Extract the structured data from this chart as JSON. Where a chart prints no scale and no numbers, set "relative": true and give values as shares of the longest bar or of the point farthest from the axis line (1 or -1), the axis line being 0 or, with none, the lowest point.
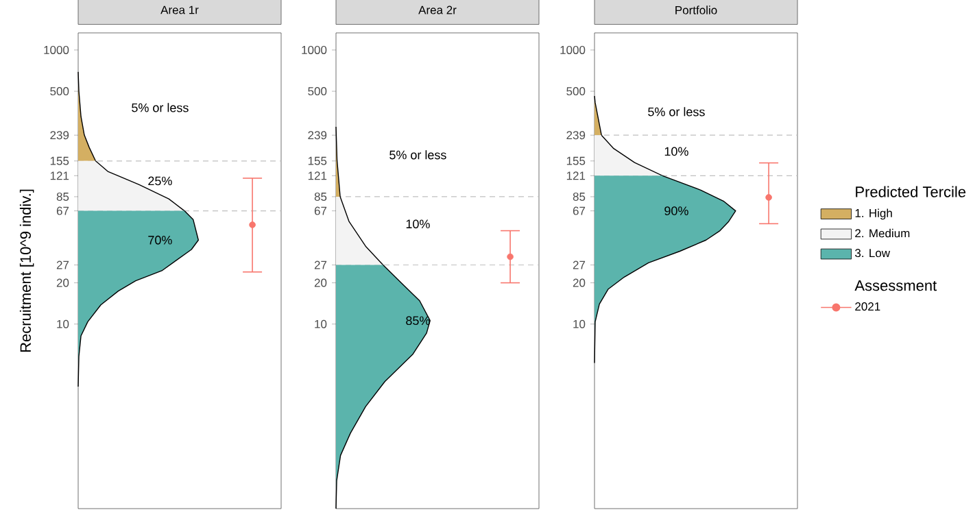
{
  "chart_data": [
    {
      "type": "area",
      "orientation": "horizontal",
      "relative": true,
      "log": "y",
      "title": "Area 1r",
      "ylabel": "Recruitment [10^9 indiv.]",
      "ylim": [
        0.45,
        1333
      ],
      "yticks": [
        10,
        20,
        27,
        67,
        85,
        121,
        155,
        239,
        500,
        1000
      ],
      "legend": "right",
      "legend_title": "Predicted Tercile",
      "series": [
        {
          "name": "1. High",
          "color": "#d4af62",
          "x": [
            692,
            500,
            327,
            240,
            195,
            155
          ],
          "values": [
            0,
            0.004,
            0.016,
            0.035,
            0.063,
            0.1
          ]
        },
        {
          "name": "2. Medium",
          "color": "#f3f3f3",
          "x": [
            155,
            130,
            104,
            82,
            67
          ],
          "values": [
            0.1,
            0.17,
            0.35,
            0.52,
            0.61
          ]
        },
        {
          "name": "3. Low",
          "color": "#5bb4ac",
          "x": [
            67,
            58,
            46,
            41,
            35,
            29,
            24.5,
            20.7,
            17.4,
            13.8,
            10.4,
            8.2,
            5.8,
            3.5
          ],
          "values": [
            0.61,
            0.66,
            0.68,
            0.69,
            0.65,
            0.56,
            0.48,
            0.33,
            0.23,
            0.13,
            0.055,
            0.016,
            0.004,
            0
          ]
        },
        {
          "name": "2021",
          "type": "scatter",
          "color": "#f8766d",
          "x": [
            53
          ],
          "values": [
            1
          ],
          "xerrors": [
            [
              24,
              116
            ]
          ]
        }
      ],
      "ref_lines": [
        {
          "axis": "y",
          "value": 155,
          "color": "#bfbfbf",
          "line_style": "dashed"
        },
        {
          "axis": "y",
          "value": 67,
          "color": "#bfbfbf",
          "line_style": "dashed"
        }
      ],
      "annotations": [
        "5% or less",
        "25%",
        "70%",
        "Assessment"
      ]
    },
    {
      "type": "area",
      "orientation": "horizontal",
      "relative": true,
      "log": "y",
      "title": "Area 2r",
      "ylim": [
        0.45,
        1333
      ],
      "yticks": [
        10,
        20,
        27,
        67,
        85,
        121,
        155,
        239,
        500,
        1000
      ],
      "series": [
        {
          "color": "#d4af62",
          "x": [
            275,
            157,
            85
          ],
          "values": [
            0,
            0.006,
            0.024
          ]
        },
        {
          "color": "#f3f3f3",
          "x": [
            85,
            56,
            37,
            27
          ],
          "values": [
            0.024,
            0.075,
            0.17,
            0.27
          ]
        },
        {
          "color": "#5bb4ac",
          "x": [
            27,
            19.7,
            14.8,
            10.6,
            8.6,
            6.0,
            3.8,
            2.5,
            1.6,
            1.1,
            0.72,
            0.45
          ],
          "values": [
            0.27,
            0.38,
            0.48,
            0.54,
            0.52,
            0.44,
            0.28,
            0.17,
            0.083,
            0.026,
            0.004,
            0
          ]
        },
        {
          "type": "scatter",
          "color": "#f8766d",
          "x": [
            31
          ],
          "values": [
            1
          ],
          "xerrors": [
            [
              20,
              48
            ]
          ]
        }
      ],
      "ref_lines": [
        {
          "axis": "y",
          "value": 85,
          "color": "#bfbfbf",
          "line_style": "dashed"
        },
        {
          "axis": "y",
          "value": 27,
          "color": "#bfbfbf",
          "line_style": "dashed"
        }
      ],
      "annotations": [
        "5% or less",
        "10%",
        "85%"
      ]
    },
    {
      "type": "area",
      "orientation": "horizontal",
      "relative": true,
      "log": "y",
      "title": "Portfolio",
      "ylim": [
        0.45,
        1333
      ],
      "yticks": [
        10,
        20,
        27,
        67,
        85,
        121,
        155,
        239,
        500,
        1000
      ],
      "series": [
        {
          "color": "#d4af62",
          "x": [
            462,
            412,
            239
          ],
          "values": [
            0,
            0.004,
            0.04
          ]
        },
        {
          "color": "#f3f3f3",
          "x": [
            239,
            191,
            151,
            121
          ],
          "values": [
            0.04,
            0.11,
            0.23,
            0.39
          ]
        },
        {
          "color": "#5bb4ac",
          "x": [
            121,
            95,
            79,
            67,
            56,
            48,
            41,
            34,
            28,
            22,
            18,
            14,
            10.4,
            5.2
          ],
          "values": [
            0.39,
            0.61,
            0.74,
            0.81,
            0.77,
            0.72,
            0.64,
            0.49,
            0.31,
            0.17,
            0.079,
            0.028,
            0.004,
            0
          ]
        },
        {
          "type": "scatter",
          "color": "#f8766d",
          "x": [
            84
          ],
          "values": [
            1
          ],
          "xerrors": [
            [
              54,
              150
            ]
          ]
        }
      ],
      "ref_lines": [
        {
          "axis": "y",
          "value": 239,
          "color": "#bfbfbf",
          "line_style": "dashed"
        },
        {
          "axis": "y",
          "value": 121,
          "color": "#bfbfbf",
          "line_style": "dashed"
        }
      ],
      "annotations": [
        "5% or less",
        "10%",
        "90%"
      ]
    }
  ]
}
